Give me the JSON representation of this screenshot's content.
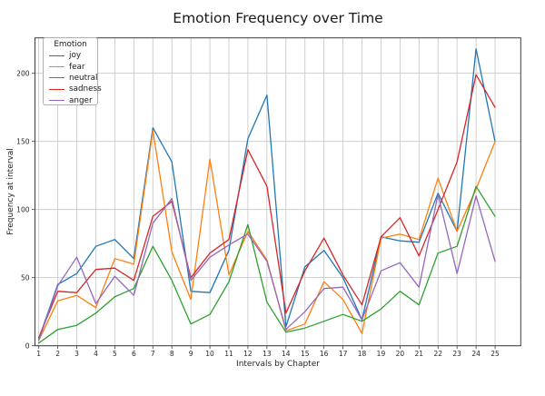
{
  "figure": {
    "title": "Emotion Frequency over Time",
    "xlabel": "Intervals by Chapter",
    "ylabel": "Frequency at interval",
    "legend_title": "Emotion"
  },
  "chart_data": {
    "type": "line",
    "title": "Emotion Frequency over Time",
    "xlabel": "Intervals by Chapter",
    "ylabel": "Frequency at interval",
    "legend_title": "Emotion",
    "legend_position": "upper left",
    "grid": true,
    "grid_color": "#c6c6c6",
    "axis_color": "#3c3c3c",
    "text_color": "#262626",
    "background_color": "#ffffff",
    "x": [
      1,
      2,
      3,
      4,
      5,
      6,
      7,
      8,
      9,
      10,
      11,
      12,
      13,
      14,
      15,
      16,
      17,
      18,
      19,
      20,
      21,
      22,
      23,
      24,
      25
    ],
    "y_ticks": [
      0,
      50,
      100,
      150,
      200
    ],
    "xlim": [
      0.8,
      26.35
    ],
    "ylim": [
      0,
      226
    ],
    "series": [
      {
        "name": "joy",
        "color": "#1f77b4",
        "values": [
          5,
          45,
          53,
          73,
          78,
          64,
          160,
          135,
          40,
          39,
          70,
          152,
          184,
          14,
          58,
          70,
          50,
          19,
          80,
          77,
          76,
          112,
          84,
          218,
          150
        ]
      },
      {
        "name": "fear",
        "color": "#ff7f0e",
        "values": [
          4,
          33,
          37,
          28,
          64,
          60,
          158,
          69,
          34,
          137,
          52,
          84,
          63,
          11,
          16,
          47,
          34,
          9,
          79,
          82,
          78,
          123,
          84,
          115,
          150
        ]
      },
      {
        "name": "neutral",
        "color": "#2ca02c",
        "values": [
          2,
          12,
          15,
          24,
          36,
          42,
          73,
          48,
          16,
          23,
          47,
          89,
          32,
          10,
          13,
          18,
          23,
          18,
          27,
          40,
          30,
          68,
          73,
          117,
          95
        ]
      },
      {
        "name": "sadness",
        "color": "#d62728",
        "values": [
          6,
          40,
          39,
          56,
          57,
          48,
          95,
          106,
          50,
          68,
          78,
          144,
          117,
          24,
          55,
          79,
          52,
          30,
          80,
          94,
          66,
          100,
          135,
          199,
          175
        ]
      },
      {
        "name": "anger",
        "color": "#9467bd",
        "values": [
          4,
          44,
          65,
          31,
          51,
          37,
          90,
          108,
          48,
          65,
          74,
          82,
          62,
          12,
          25,
          42,
          43,
          19,
          55,
          61,
          43,
          111,
          53,
          110,
          62
        ]
      }
    ]
  }
}
